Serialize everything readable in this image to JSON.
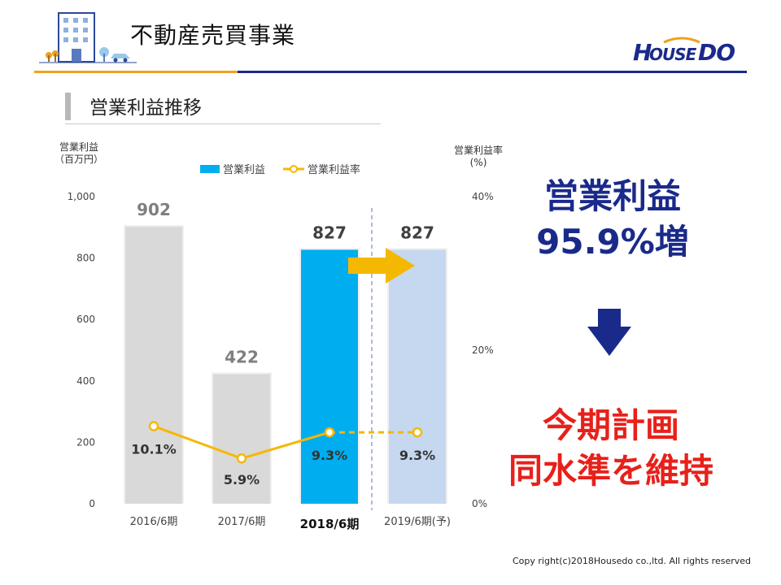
{
  "header": {
    "title": "不動産売買事業",
    "logo_text": "HOUSEDO",
    "accent_orange": "#f0a020",
    "accent_navy": "#1a2a8a"
  },
  "section": {
    "title": "営業利益推移"
  },
  "chart_data": {
    "type": "bar",
    "categories": [
      "2016/6期",
      "2017/6期",
      "2018/6期",
      "2019/6期(予)"
    ],
    "highlight_category": "2018/6期",
    "series": [
      {
        "name": "営業利益",
        "chart_type": "bar",
        "axis": "left",
        "values": [
          902,
          422,
          827,
          827
        ],
        "data_labels": [
          "902",
          "422",
          "827",
          "827"
        ],
        "colors": [
          "#d9d9d9",
          "#d9d9d9",
          "#00aeef",
          "#c5d8f0"
        ]
      },
      {
        "name": "営業利益率",
        "chart_type": "line",
        "axis": "right",
        "values": [
          10.1,
          5.9,
          9.3,
          9.3
        ],
        "data_labels": [
          "10.1%",
          "5.9%",
          "9.3%",
          "9.3%"
        ],
        "color": "#f5b800",
        "dashed_from_index": 2
      }
    ],
    "y_left": {
      "label_line1": "営業利益",
      "label_line2": "（百万円）",
      "ticks": [
        "0",
        "200",
        "400",
        "600",
        "800",
        "1,000"
      ],
      "ylim": [
        0,
        1000
      ]
    },
    "y_right": {
      "label_line1": "営業利益率",
      "label_line2": "(%)",
      "ticks": [
        "0%",
        "20%",
        "40%"
      ],
      "ylim": [
        0,
        40
      ]
    },
    "grid": false,
    "legend": "top-center"
  },
  "callouts": {
    "headline1_line1": "営業利益",
    "headline1_line2": "95.9%増",
    "headline2_line1": "今期計画",
    "headline2_line2": "同水準を維持"
  },
  "footer": {
    "copyright": "Copy right(c)2018Housedo co.,ltd. All rights reserved"
  }
}
